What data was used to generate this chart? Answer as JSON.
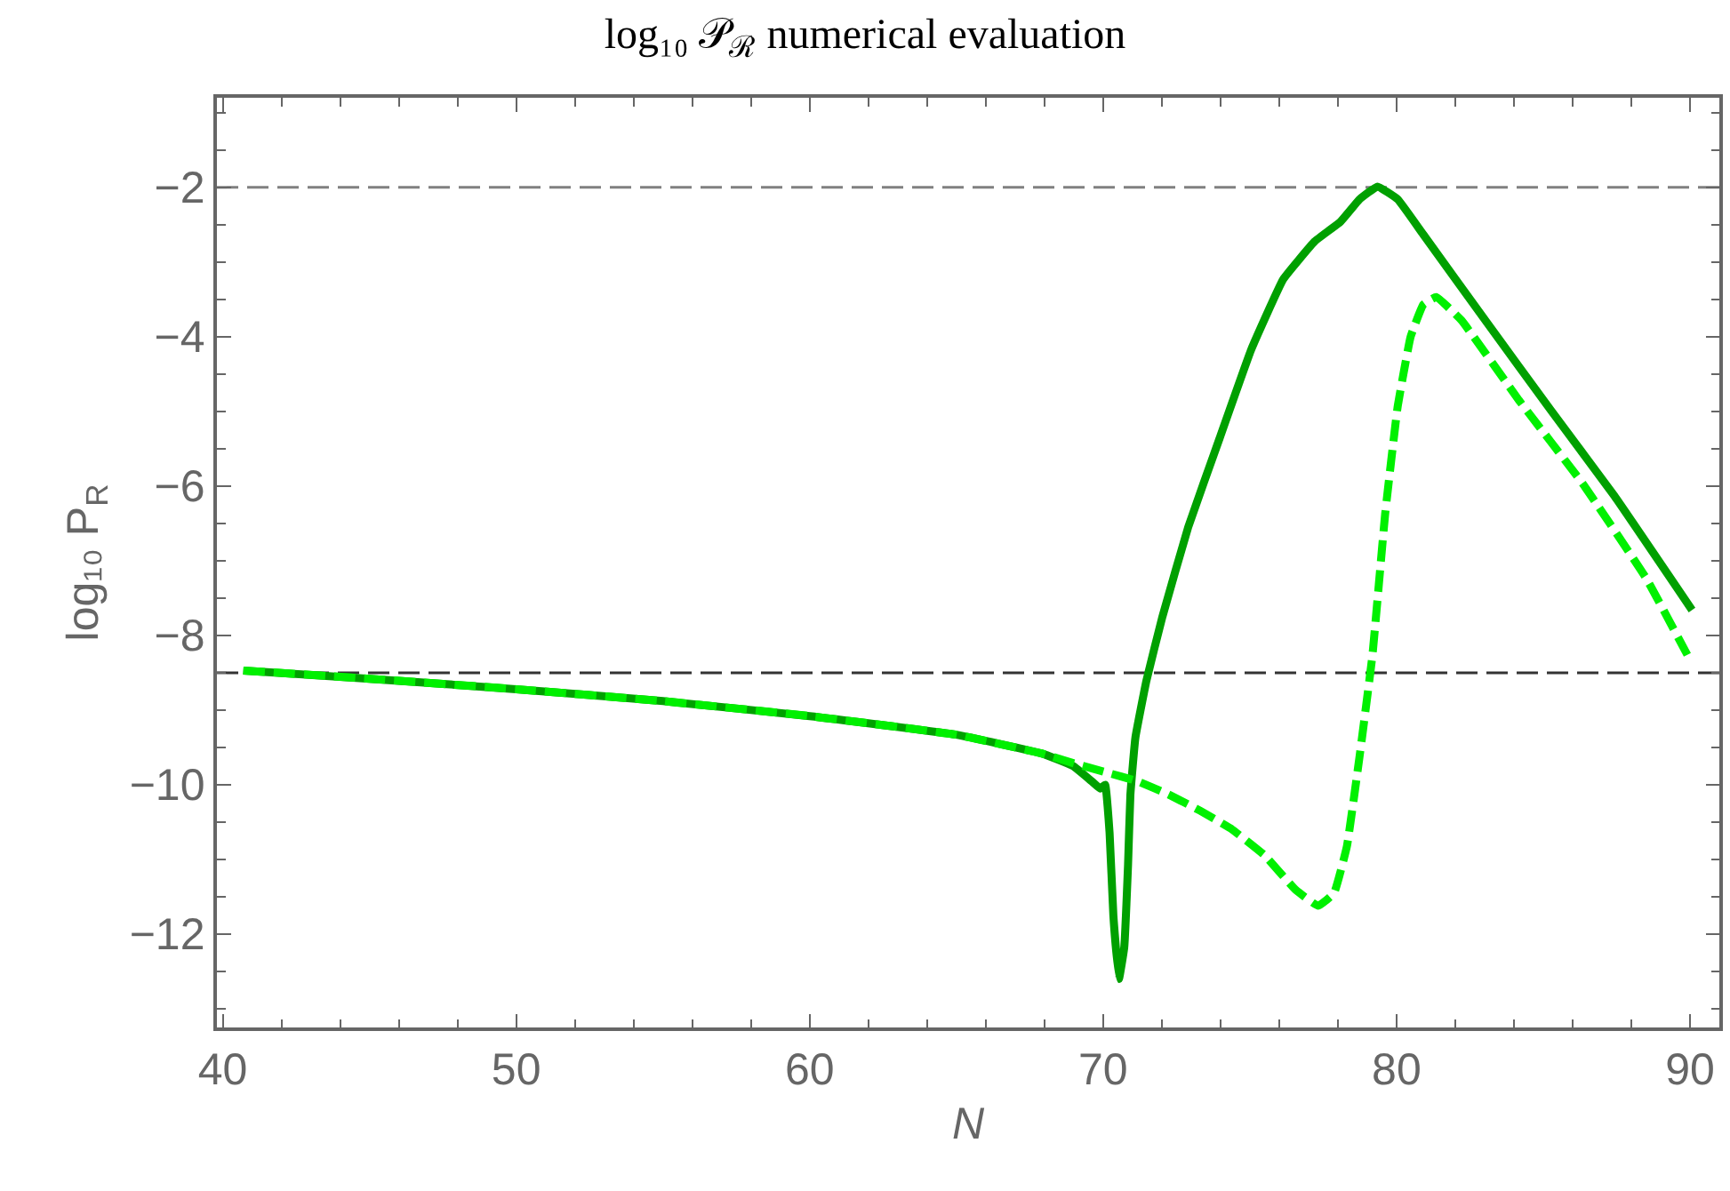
{
  "chart_data": {
    "type": "line",
    "title": "log₁₀ 𝒫$_{ℛ}$ numerical evaluation",
    "xlabel": "N",
    "ylabel": "log₁₀ P$_{R}$",
    "xlim": [
      39.8,
      91
    ],
    "ylim": [
      -13.25,
      -0.8
    ],
    "xticks": [
      {
        "value": 40,
        "label": "40"
      },
      {
        "value": 42,
        "label": null
      },
      {
        "value": 44,
        "label": null
      },
      {
        "value": 46,
        "label": null
      },
      {
        "value": 48,
        "label": null
      },
      {
        "value": 50,
        "label": "50"
      },
      {
        "value": 52,
        "label": null
      },
      {
        "value": 54,
        "label": null
      },
      {
        "value": 56,
        "label": null
      },
      {
        "value": 58,
        "label": null
      },
      {
        "value": 60,
        "label": "60"
      },
      {
        "value": 62,
        "label": null
      },
      {
        "value": 64,
        "label": null
      },
      {
        "value": 66,
        "label": null
      },
      {
        "value": 68,
        "label": null
      },
      {
        "value": 70,
        "label": "70"
      },
      {
        "value": 72,
        "label": null
      },
      {
        "value": 74,
        "label": null
      },
      {
        "value": 76,
        "label": null
      },
      {
        "value": 78,
        "label": null
      },
      {
        "value": 80,
        "label": "80"
      },
      {
        "value": 82,
        "label": null
      },
      {
        "value": 84,
        "label": null
      },
      {
        "value": 86,
        "label": null
      },
      {
        "value": 88,
        "label": null
      },
      {
        "value": 90,
        "label": "90"
      }
    ],
    "yticks": [
      {
        "value": -13,
        "label": null
      },
      {
        "value": -12.5,
        "label": null
      },
      {
        "value": -12,
        "label": "−12"
      },
      {
        "value": -11.5,
        "label": null
      },
      {
        "value": -11,
        "label": null
      },
      {
        "value": -10.5,
        "label": null
      },
      {
        "value": -10,
        "label": "−10"
      },
      {
        "value": -9.5,
        "label": null
      },
      {
        "value": -9,
        "label": null
      },
      {
        "value": -8.5,
        "label": null
      },
      {
        "value": -8,
        "label": "−8"
      },
      {
        "value": -7.5,
        "label": null
      },
      {
        "value": -7,
        "label": null
      },
      {
        "value": -6.5,
        "label": null
      },
      {
        "value": -6,
        "label": "−6"
      },
      {
        "value": -5.5,
        "label": null
      },
      {
        "value": -5,
        "label": null
      },
      {
        "value": -4.5,
        "label": null
      },
      {
        "value": -4,
        "label": "−4"
      },
      {
        "value": -3.5,
        "label": null
      },
      {
        "value": -3,
        "label": null
      },
      {
        "value": -2.5,
        "label": null
      },
      {
        "value": -2,
        "label": "−2"
      },
      {
        "value": -1.5,
        "label": null
      },
      {
        "value": -1,
        "label": null
      }
    ],
    "grid": false,
    "marker": "none",
    "ref_lines": [
      {
        "axis": "y",
        "value": -2,
        "color": "#808080",
        "line_style": "dashed"
      },
      {
        "axis": "y",
        "value": -8.5,
        "color": "#333333",
        "line_style": "dashed"
      }
    ],
    "series": [
      {
        "color": "#00a000",
        "line_style": "solid",
        "x": [
          40.7,
          45,
          50,
          55,
          60,
          65,
          67.9,
          68.98,
          69.63,
          69.9,
          70.07,
          70.22,
          70.35,
          70.54,
          70.72,
          70.85,
          70.93,
          71.1,
          71.48,
          72.02,
          72.9,
          73.97,
          75.05,
          76.14,
          77.22,
          78.09,
          78.74,
          79.35,
          80.04,
          80.91,
          83.08,
          85.25,
          87.42,
          90.07
        ],
        "values": [
          -8.47,
          -8.58,
          -8.72,
          -8.88,
          -9.08,
          -9.33,
          -9.58,
          -9.75,
          -9.96,
          -10.05,
          -10.0,
          -10.64,
          -11.75,
          -12.6,
          -12.18,
          -11.07,
          -10.13,
          -9.37,
          -8.6,
          -7.75,
          -6.55,
          -5.36,
          -4.17,
          -3.23,
          -2.72,
          -2.46,
          -2.16,
          -1.99,
          -2.16,
          -2.63,
          -3.81,
          -4.98,
          -6.13,
          -7.66
        ]
      },
      {
        "color": "#00f000",
        "line_style": "dashed",
        "x": [
          40.7,
          45,
          50,
          55,
          60,
          65,
          67.9,
          68.98,
          70.07,
          71.15,
          72.23,
          73.32,
          74.4,
          75.49,
          76.57,
          77.33,
          77.87,
          78.31,
          78.74,
          79.18,
          79.61,
          80.04,
          80.48,
          80.91,
          81.35,
          82.21,
          84.17,
          86.33,
          88.5,
          89.91
        ],
        "values": [
          -8.47,
          -8.58,
          -8.72,
          -8.88,
          -9.08,
          -9.33,
          -9.58,
          -9.71,
          -9.83,
          -9.95,
          -10.13,
          -10.35,
          -10.6,
          -10.94,
          -11.41,
          -11.62,
          -11.45,
          -10.82,
          -9.62,
          -8.26,
          -6.38,
          -4.93,
          -4.0,
          -3.57,
          -3.47,
          -3.78,
          -4.85,
          -5.96,
          -7.23,
          -8.26
        ]
      }
    ]
  }
}
